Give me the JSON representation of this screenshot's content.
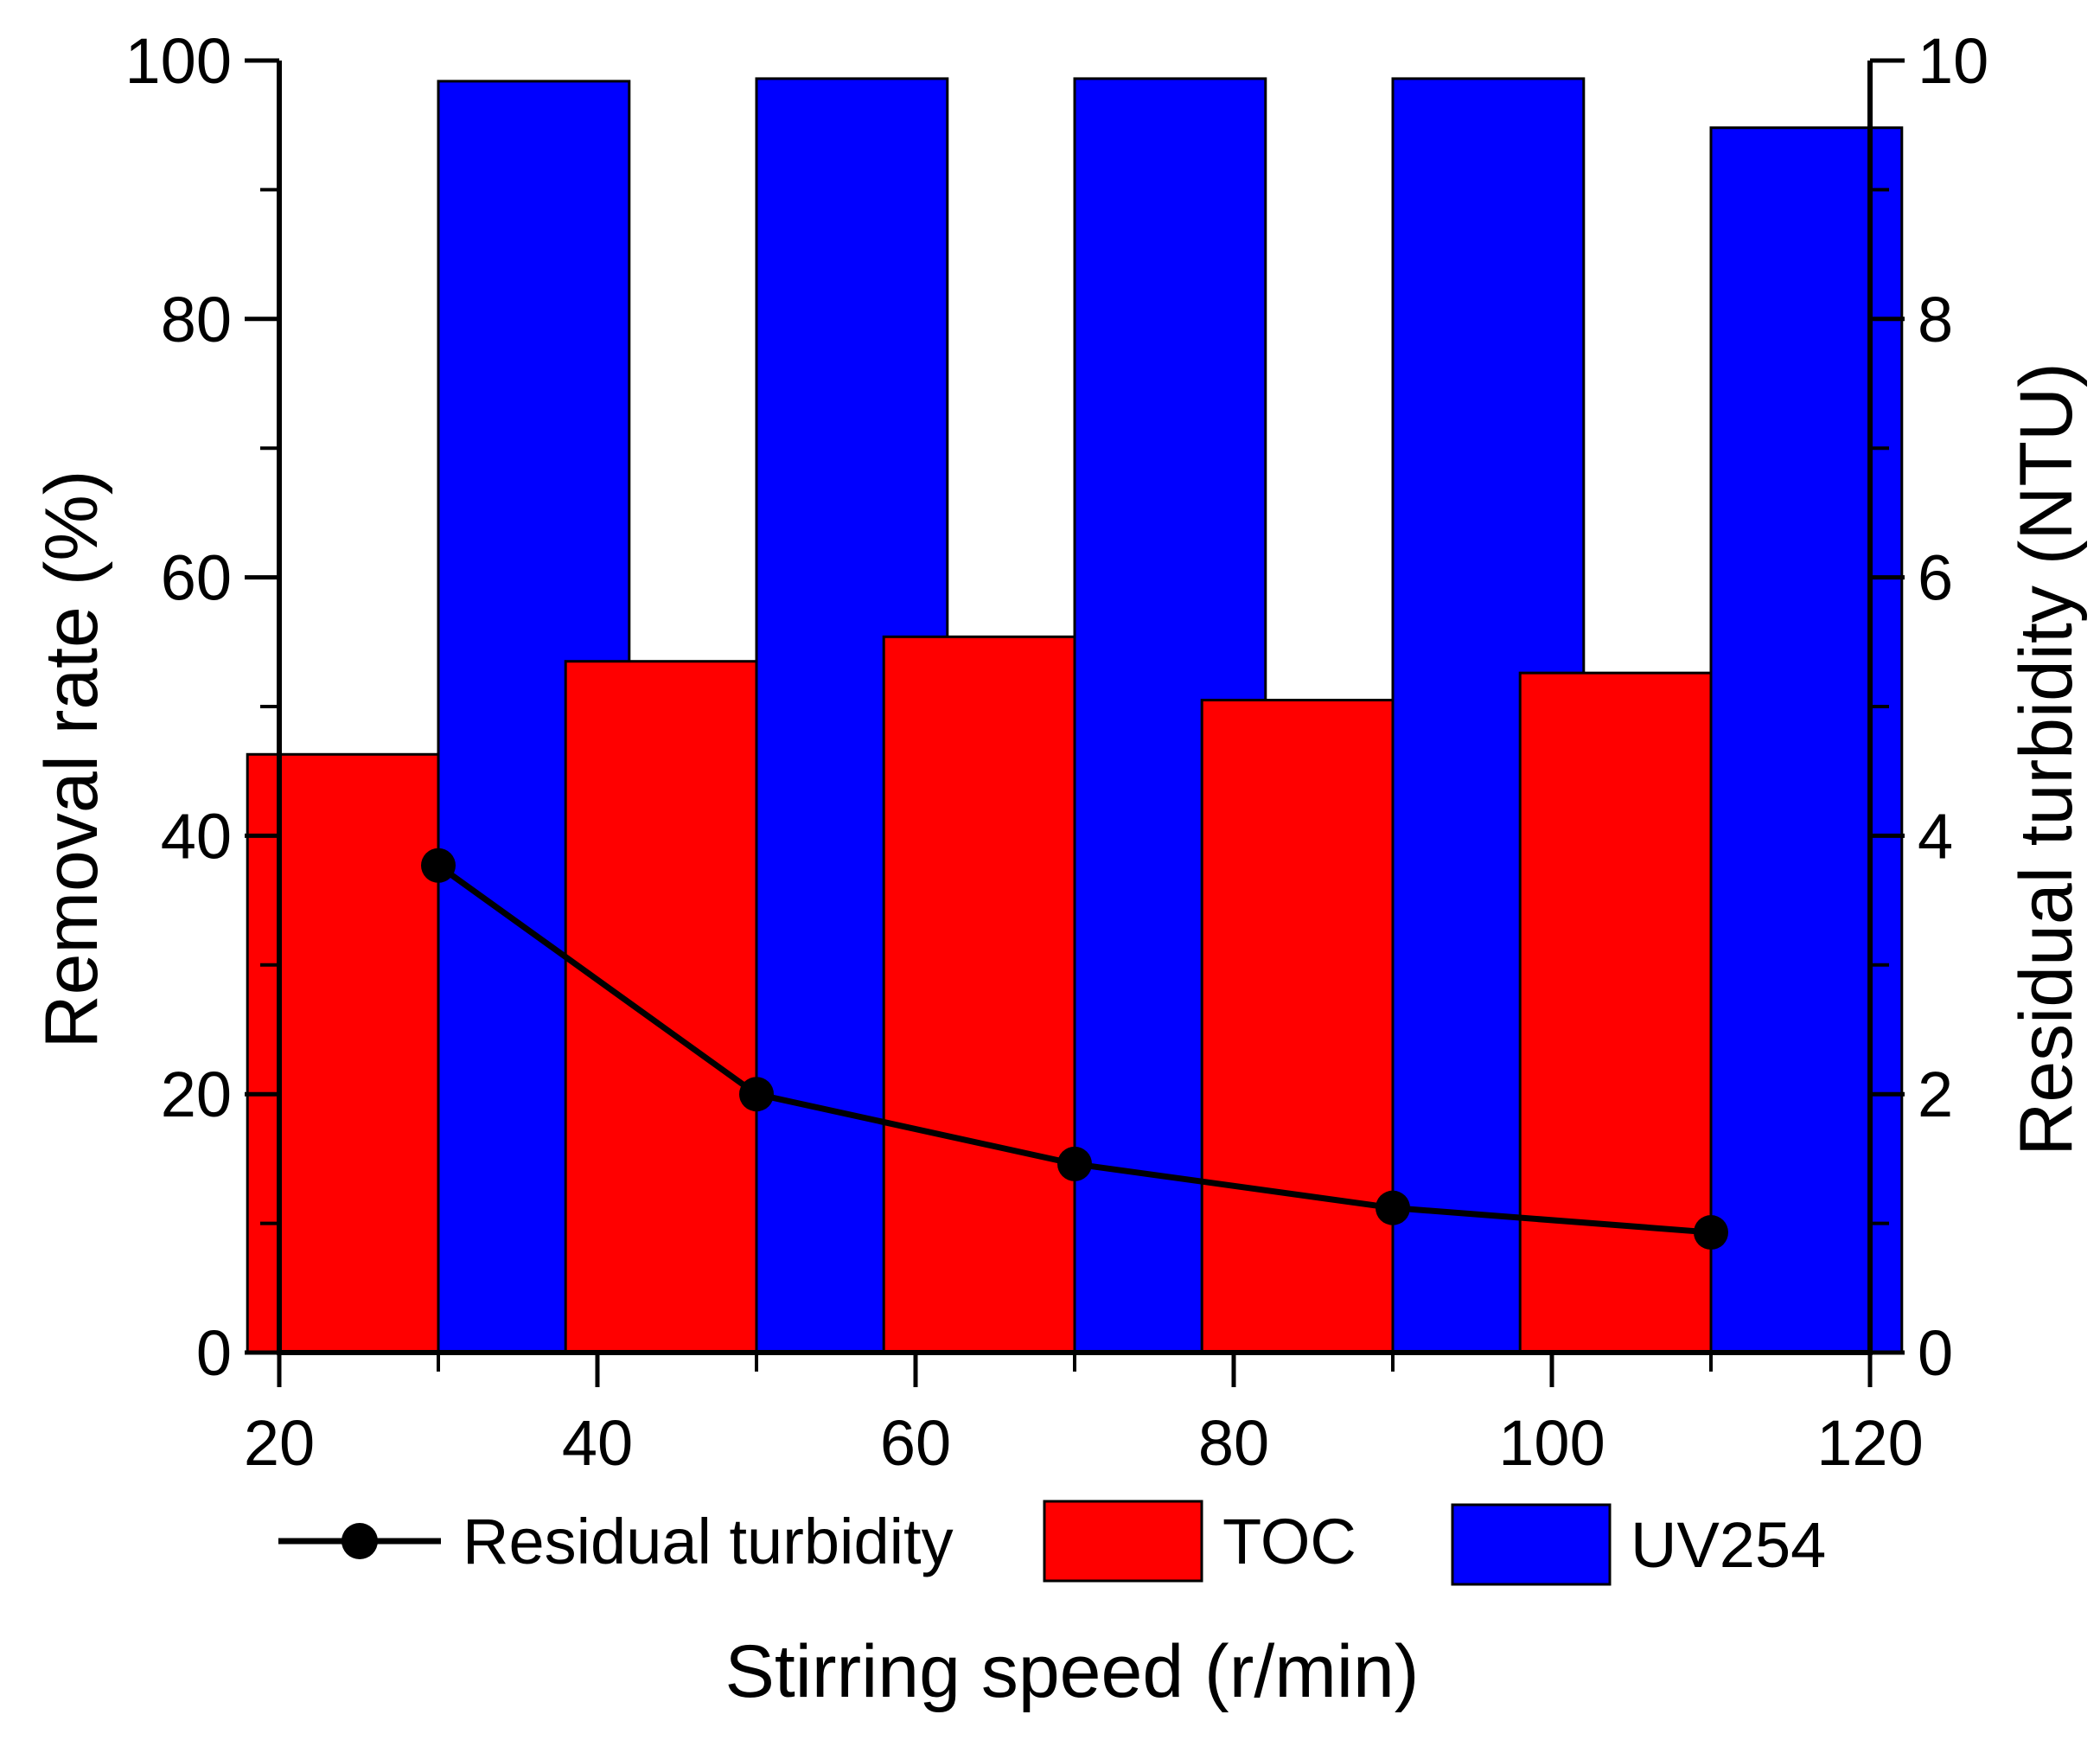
{
  "chart_data": {
    "type": "bar",
    "x": [
      30,
      50,
      70,
      90,
      110
    ],
    "xlabel": "Stirring speed (r/min)",
    "ylabel": "Removal rate (%)",
    "y2label": "Residual turbidity (NTU)",
    "xlim": [
      20,
      120
    ],
    "ylim": [
      0,
      100
    ],
    "y2lim": [
      0,
      10
    ],
    "xticks": [
      "20",
      "40",
      "60",
      "80",
      "100",
      "120"
    ],
    "yticks": [
      "0",
      "20",
      "40",
      "60",
      "80",
      "100"
    ],
    "y2ticks": [
      "0",
      "2",
      "4",
      "6",
      "8",
      "10"
    ],
    "legend_position": "bottom",
    "series": [
      {
        "name": "TOC",
        "type": "bar",
        "axis": "left",
        "color": "#ff0000",
        "values": [
          46.3,
          53.5,
          55.4,
          50.5,
          52.6
        ]
      },
      {
        "name": "UV254",
        "type": "bar",
        "axis": "left",
        "color": "#0000ff",
        "values": [
          98.4,
          98.6,
          98.6,
          98.6,
          94.8
        ]
      },
      {
        "name": "Residual turbidity",
        "type": "line",
        "axis": "right",
        "color": "#000000",
        "marker": "circle",
        "values": [
          3.77,
          2.0,
          1.46,
          1.12,
          0.93
        ]
      }
    ],
    "legend": [
      "Residual turbidity",
      "TOC",
      "UV254"
    ]
  }
}
